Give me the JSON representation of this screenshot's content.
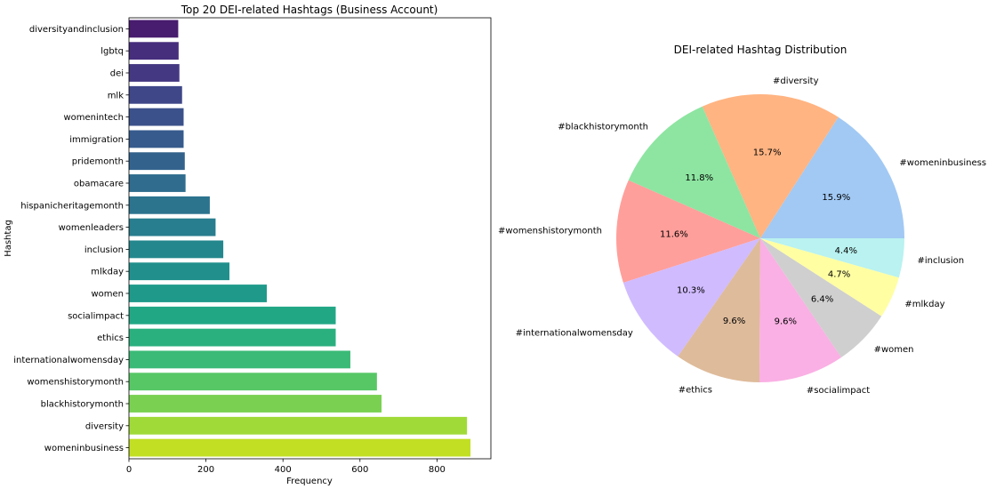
{
  "chart_data": [
    {
      "type": "bar",
      "orientation": "horizontal",
      "title": "Top 20 DEI-related Hashtags (Business Account)",
      "xlabel": "Frequency",
      "ylabel": "Hashtag",
      "xlim": [
        0,
        940
      ],
      "xticks": [
        0,
        200,
        400,
        600,
        800
      ],
      "grid": false,
      "palette": "viridis",
      "categories": [
        "diversityandinclusion",
        "lgbtq",
        "dei",
        "mlk",
        "womenintech",
        "immigration",
        "pridemonth",
        "obamacare",
        "hispanicheritagemonth",
        "womenleaders",
        "inclusion",
        "mlkday",
        "women",
        "socialimpact",
        "ethics",
        "internationalwomensday",
        "womenshistorymonth",
        "blackhistorymonth",
        "diversity",
        "womeninbusiness"
      ],
      "values": [
        128,
        129,
        131,
        138,
        142,
        142,
        145,
        147,
        210,
        225,
        245,
        261,
        358,
        537,
        537,
        575,
        644,
        656,
        878,
        887
      ],
      "colors": [
        "#481c6e",
        "#472e7c",
        "#453882",
        "#3f4788",
        "#3b518b",
        "#375b8d",
        "#33638d",
        "#2f6c8e",
        "#2c738e",
        "#287d8e",
        "#24878e",
        "#21908d",
        "#1f9a8a",
        "#22a785",
        "#2ab07f",
        "#3aba76",
        "#57c766",
        "#7ad151",
        "#a0da39",
        "#c2df23"
      ]
    },
    {
      "type": "pie",
      "title": "DEI-related Hashtag Distribution",
      "start_angle_deg": 0,
      "direction": "counterclockwise",
      "slices": [
        {
          "label": "#womeninbusiness",
          "value": 15.9,
          "pct": "15.9%",
          "color": "#a1c9f4"
        },
        {
          "label": "#diversity",
          "value": 15.7,
          "pct": "15.7%",
          "color": "#ffb482"
        },
        {
          "label": "#blackhistorymonth",
          "value": 11.8,
          "pct": "11.8%",
          "color": "#8de5a1"
        },
        {
          "label": "#womenshistorymonth",
          "value": 11.6,
          "pct": "11.6%",
          "color": "#ff9f9b"
        },
        {
          "label": "#internationalwomensday",
          "value": 10.3,
          "pct": "10.3%",
          "color": "#d0bbff"
        },
        {
          "label": "#ethics",
          "value": 9.6,
          "pct": "9.6%",
          "color": "#debb9b"
        },
        {
          "label": "#socialimpact",
          "value": 9.6,
          "pct": "9.6%",
          "color": "#fab0e4"
        },
        {
          "label": "#women",
          "value": 6.4,
          "pct": "6.4%",
          "color": "#cfcfcf"
        },
        {
          "label": "#mlkday",
          "value": 4.7,
          "pct": "4.7%",
          "color": "#fffea3"
        },
        {
          "label": "#inclusion",
          "value": 4.4,
          "pct": "4.4%",
          "color": "#b9f2f0"
        }
      ]
    }
  ]
}
